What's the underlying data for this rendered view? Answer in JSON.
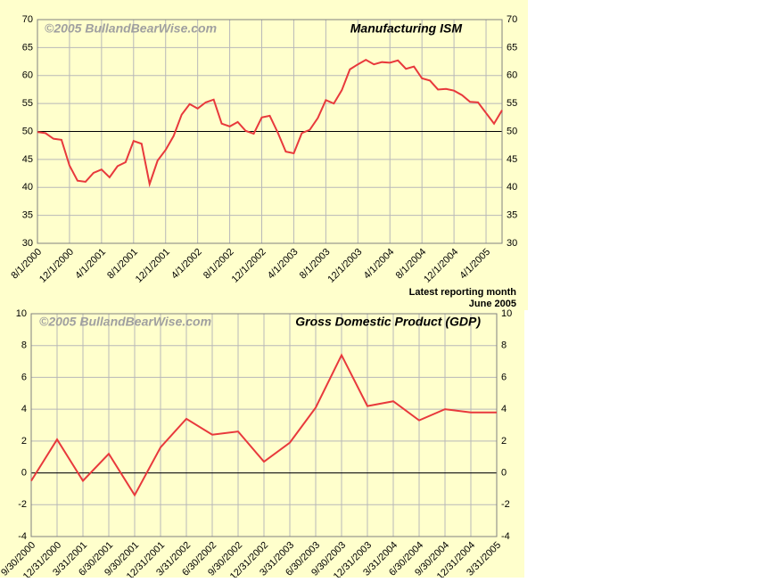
{
  "chart_data": [
    {
      "type": "line",
      "title": "Manufacturing ISM",
      "watermark": "©2005 BullandBearWise.com",
      "annotations": [
        "Latest reporting month",
        "June 2005"
      ],
      "categories": [
        "8/1/2000",
        null,
        null,
        null,
        "12/1/2000",
        null,
        null,
        null,
        "4/1/2001",
        null,
        null,
        null,
        "8/1/2001",
        null,
        null,
        null,
        "12/1/2001",
        null,
        null,
        null,
        "4/1/2002",
        null,
        null,
        null,
        "8/1/2002",
        null,
        null,
        null,
        "12/1/2002",
        null,
        null,
        null,
        "4/1/2003",
        null,
        null,
        null,
        "8/1/2003",
        null,
        null,
        null,
        "12/1/2003",
        null,
        null,
        null,
        "4/1/2004",
        null,
        null,
        null,
        "8/1/2004",
        null,
        null,
        null,
        "12/1/2004",
        null,
        null,
        null,
        "4/1/2005",
        null,
        null
      ],
      "series": [
        {
          "color": "#e8393c",
          "values": [
            49.9,
            49.7,
            48.7,
            48.5,
            43.9,
            41.2,
            41.0,
            42.6,
            43.2,
            41.8,
            43.8,
            44.5,
            48.3,
            47.8,
            40.6,
            44.8,
            46.7,
            49.2,
            53.0,
            54.9,
            54.1,
            55.2,
            55.7,
            51.4,
            50.9,
            51.7,
            50.1,
            49.6,
            52.5,
            52.8,
            49.8,
            46.4,
            46.1,
            49.7,
            50.3,
            52.4,
            55.6,
            55.0,
            57.4,
            61.1,
            62.0,
            62.8,
            62.0,
            62.4,
            62.3,
            62.7,
            61.2,
            61.6,
            59.5,
            59.1,
            57.5,
            57.6,
            57.3,
            56.5,
            55.3,
            55.2,
            53.3,
            51.4,
            53.8
          ]
        }
      ],
      "ylim": [
        30,
        70
      ],
      "yticks": [
        30,
        35,
        40,
        45,
        50,
        55,
        60,
        65,
        70
      ],
      "grid": true,
      "reference_line": 50
    },
    {
      "type": "line",
      "title": "Gross Domestic Product (GDP)",
      "watermark": "©2005 BullandBearWise.com",
      "categories": [
        "9/30/2000",
        "12/31/2000",
        "3/31/2001",
        "6/30/2001",
        "9/30/2001",
        "12/31/2001",
        "3/31/2002",
        "6/30/2002",
        "9/30/2002",
        "12/31/2002",
        "3/31/2003",
        "6/30/2003",
        "9/30/2003",
        "12/31/2003",
        "3/31/2004",
        "6/30/2004",
        "9/30/2004",
        "12/31/2004",
        "3/31/2005"
      ],
      "series": [
        {
          "color": "#e8393c",
          "values": [
            -0.5,
            2.1,
            -0.5,
            1.2,
            -1.4,
            1.6,
            3.4,
            2.4,
            2.6,
            0.7,
            1.9,
            4.1,
            7.4,
            4.2,
            4.5,
            3.3,
            4.0,
            3.8,
            3.8
          ]
        }
      ],
      "ylim": [
        -4,
        10
      ],
      "yticks": [
        -4,
        -2,
        0,
        2,
        4,
        6,
        8,
        10
      ],
      "grid": true,
      "reference_line": 0
    }
  ]
}
